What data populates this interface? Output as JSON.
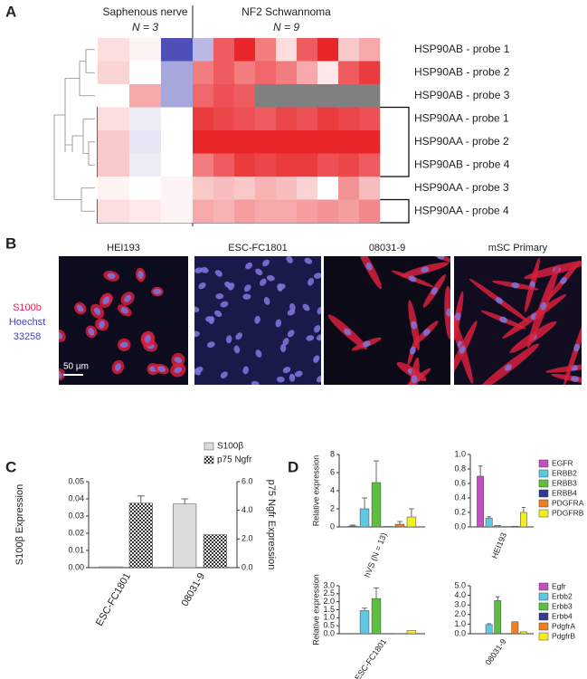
{
  "panel_labels": [
    "A",
    "B",
    "C",
    "D"
  ],
  "chart_data": [
    {
      "type": "heatmap",
      "groups": [
        {
          "name": "Saphenous nerve",
          "n": 3,
          "n_label": "N = 3"
        },
        {
          "name": "NF2 Schwannoma",
          "n": 9,
          "n_label": "N = 9"
        }
      ],
      "rows": [
        "HSP90AB - probe 1",
        "HSP90AB - probe 2",
        "HSP90AB - probe 3",
        "HSP90AA - probe 1",
        "HSP90AA - probe 2",
        "HSP90AB - probe 4",
        "HSP90AA - probe 3",
        "HSP90AA - probe 4"
      ],
      "values": [
        [
          0.3,
          0.1,
          -2,
          -0.8,
          1.5,
          2,
          1.2,
          0.3,
          1.5,
          2,
          0.5,
          0.8
        ],
        [
          0.4,
          0,
          -1,
          1.2,
          1.5,
          1.2,
          1.4,
          1.2,
          0.8,
          0.2,
          1.5,
          1.8
        ],
        [
          0,
          0.8,
          -1,
          1.4,
          1.6,
          1.5,
          null,
          null,
          null,
          null,
          null,
          null
        ],
        [
          0.3,
          -0.2,
          0,
          1.8,
          1.7,
          1.6,
          1.5,
          1.7,
          1.6,
          1.8,
          1.7,
          1.6
        ],
        [
          0.5,
          -0.3,
          0,
          2,
          2,
          2,
          2,
          2,
          2,
          2,
          2,
          2
        ],
        [
          0.5,
          -0.2,
          0,
          1.2,
          1.5,
          1.8,
          1.7,
          1.8,
          1.8,
          1.6,
          1.7,
          1.5
        ],
        [
          0.1,
          0,
          0.1,
          0.5,
          0.6,
          0.5,
          0.7,
          0.6,
          0.4,
          0,
          1,
          0.6
        ],
        [
          0.3,
          0.2,
          0.1,
          0.8,
          0.7,
          0.9,
          0.8,
          0.8,
          0.9,
          1,
          0.9,
          1.1
        ]
      ],
      "zlim": [
        -2,
        2
      ],
      "colors": [
        "#4f4fb8",
        "#ffffff",
        "#e8262a"
      ],
      "missing_color": "#808080"
    },
    {
      "type": "bar",
      "categories": [
        "ESC-FC1801",
        "08031-9"
      ],
      "series": [
        {
          "name": "S100β",
          "color": "#dcdcdc",
          "values": [
            0.0005,
            0.037
          ],
          "errors": [
            null,
            0.003
          ]
        },
        {
          "name": "p75 Ngfr",
          "color": "#404040",
          "pattern": "crosshatch",
          "axis": "y2",
          "values": [
            4.5,
            2.3
          ],
          "errors": [
            0.5,
            null
          ]
        }
      ],
      "ylabel": "S100β Expression",
      "y2label": "p75 Ngfr Expression",
      "ylim": [
        0,
        0.05
      ],
      "yticks": [
        {
          "value": 0,
          "label": "0.00"
        },
        0.01,
        0.02,
        0.03,
        0.04,
        0.05
      ],
      "y2lim": [
        0,
        6
      ],
      "y2ticks": [
        {
          "value": 0,
          "label": "0.0"
        },
        {
          "value": 2,
          "label": "2.0"
        },
        {
          "value": 4,
          "label": "4.0"
        },
        {
          "value": 6,
          "label": "6.0"
        }
      ]
    },
    {
      "type": "bar",
      "categories": [
        "hVS (N = 13)"
      ],
      "ylabel": "Relative expression",
      "ylim": [
        0,
        8
      ],
      "yticks": [
        0,
        2,
        4,
        6,
        8
      ],
      "series": [
        {
          "color": "#c24fc2",
          "values": [
            0.1
          ],
          "errors": [
            0.1
          ]
        },
        {
          "color": "#5cc8e2",
          "values": [
            2.0
          ],
          "errors": [
            1.2
          ]
        },
        {
          "color": "#5cbf3f",
          "values": [
            4.9
          ],
          "errors": [
            2.4
          ]
        },
        {
          "color": "#30388f",
          "values": [
            0.05
          ],
          "errors": [
            null
          ]
        },
        {
          "color": "#f0801f",
          "values": [
            0.3
          ],
          "errors": [
            0.3
          ]
        },
        {
          "color": "#f2ef1e",
          "values": [
            1.1
          ],
          "errors": [
            0.9
          ]
        }
      ]
    },
    {
      "type": "bar",
      "categories": [
        "HEI193"
      ],
      "ylim": [
        0,
        1
      ],
      "yticks": [
        {
          "value": 0,
          "label": "0.0"
        },
        0.2,
        0.4,
        0.6,
        0.8,
        {
          "value": 1,
          "label": "1.0"
        }
      ],
      "series": [
        {
          "name": "EGFR",
          "color": "#c24fc2",
          "values": [
            0.7
          ],
          "errors": [
            0.14
          ]
        },
        {
          "name": "ERBB2",
          "color": "#5cc8e2",
          "values": [
            0.12
          ],
          "errors": [
            0.02
          ]
        },
        {
          "name": "ERBB3",
          "color": "#5cbf3f",
          "values": [
            0.02
          ],
          "errors": [
            null
          ]
        },
        {
          "name": "ERBB4",
          "color": "#30388f",
          "values": [
            0.005
          ],
          "errors": [
            null
          ]
        },
        {
          "name": "PDGFRA",
          "color": "#f0801f",
          "values": [
            0.01
          ],
          "errors": [
            null
          ]
        },
        {
          "name": "PDGFRB",
          "color": "#f2ef1e",
          "values": [
            0.2
          ],
          "errors": [
            0.07
          ]
        }
      ]
    },
    {
      "type": "bar",
      "categories": [
        "ESC-FC1801"
      ],
      "ylabel": "Relative expression",
      "ylim": [
        0,
        3
      ],
      "yticks": [
        {
          "value": 0,
          "label": "0.0"
        },
        0.5,
        {
          "value": 1,
          "label": "1.0"
        },
        1.5,
        {
          "value": 2,
          "label": "2.0"
        },
        2.5,
        {
          "value": 3,
          "label": "3.0"
        }
      ],
      "series": [
        {
          "color": "#c24fc2",
          "values": [
            0
          ],
          "errors": [
            null
          ]
        },
        {
          "color": "#5cc8e2",
          "values": [
            1.45
          ],
          "errors": [
            0.15
          ]
        },
        {
          "color": "#5cbf3f",
          "values": [
            2.2
          ],
          "errors": [
            0.65
          ]
        },
        {
          "color": "#30388f",
          "values": [
            0
          ],
          "errors": [
            null
          ]
        },
        {
          "color": "#f0801f",
          "values": [
            0.01
          ],
          "errors": [
            null
          ]
        },
        {
          "color": "#f2ef1e",
          "values": [
            0.2
          ],
          "errors": [
            null
          ]
        }
      ]
    },
    {
      "type": "bar",
      "categories": [
        "08031-9"
      ],
      "ylim": [
        0,
        5
      ],
      "yticks": [
        {
          "value": 0,
          "label": "0.0"
        },
        {
          "value": 1,
          "label": "1.0"
        },
        {
          "value": 2,
          "label": "2.0"
        },
        {
          "value": 3,
          "label": "3.0"
        },
        {
          "value": 4,
          "label": "4.0"
        },
        {
          "value": 5,
          "label": "5.0"
        }
      ],
      "series": [
        {
          "name": "Egfr",
          "color": "#c24fc2",
          "values": [
            0
          ],
          "errors": [
            null
          ]
        },
        {
          "name": "Erbb2",
          "color": "#5cc8e2",
          "values": [
            0.95
          ],
          "errors": [
            0.1
          ]
        },
        {
          "name": "Erbb3",
          "color": "#5cbf3f",
          "values": [
            3.45
          ],
          "errors": [
            0.4
          ]
        },
        {
          "name": "Erbb4",
          "color": "#30388f",
          "values": [
            0
          ],
          "errors": [
            null
          ]
        },
        {
          "name": "PdgfrA",
          "color": "#f0801f",
          "values": [
            1.25
          ],
          "errors": [
            null
          ]
        },
        {
          "name": "PdgfrB",
          "color": "#f2ef1e",
          "values": [
            0.2
          ],
          "errors": [
            null
          ]
        }
      ]
    }
  ],
  "panel_b": {
    "images": [
      "HEI193",
      "ESC-FC1801",
      "08031-9",
      "mSC Primary"
    ],
    "stains": [
      "S100b",
      "Hoechst",
      "33258"
    ],
    "scale_bar": "50 µm"
  }
}
